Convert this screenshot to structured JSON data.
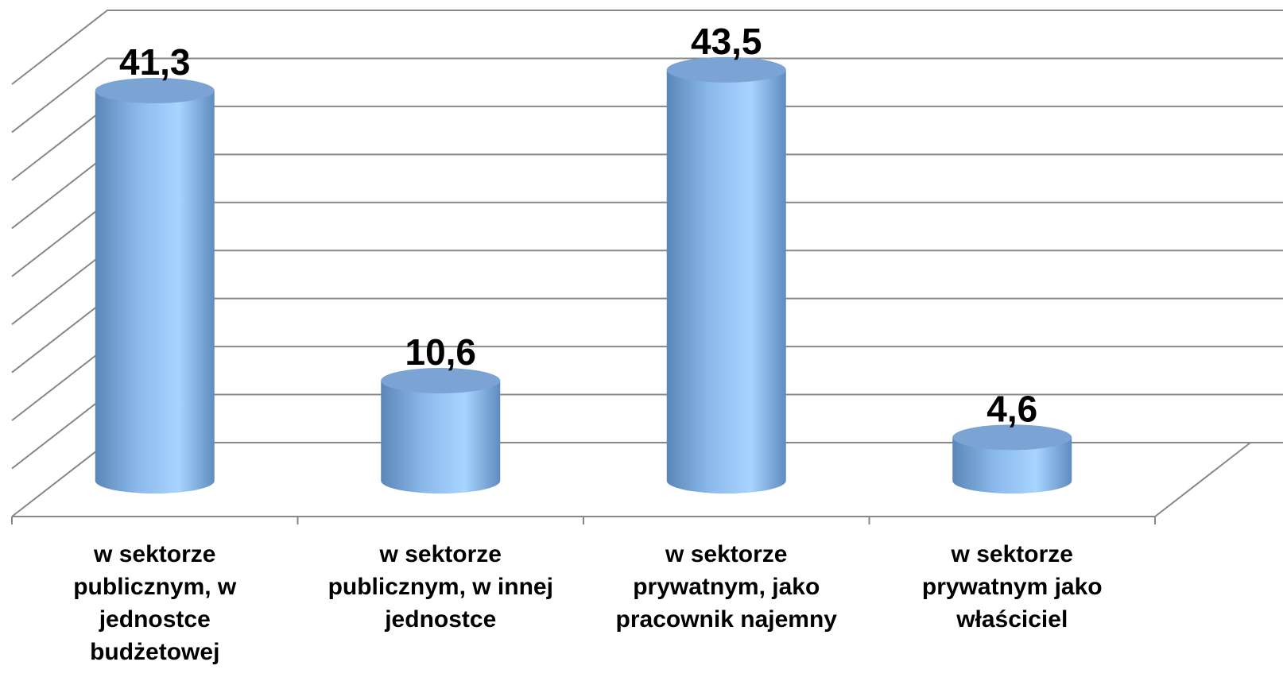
{
  "chart_data": {
    "type": "bar",
    "categories": [
      "w sektorze publicznym, w jednostce budżetowej",
      "w sektorze publicznym, w innej jednostce",
      "w sektorze prywatnym, jako pracownik najemny",
      "w sektorze prywatnym jako właściciel"
    ],
    "values": [
      41.3,
      10.6,
      43.5,
      4.6
    ],
    "value_labels": [
      "41,3",
      "10,6",
      "43,5",
      "4,6"
    ],
    "color": "#8ab8ea",
    "ylim": [
      0,
      45
    ],
    "yticks": [
      0,
      5,
      10,
      15,
      20,
      25,
      30,
      35,
      40,
      45
    ],
    "grid": true
  }
}
